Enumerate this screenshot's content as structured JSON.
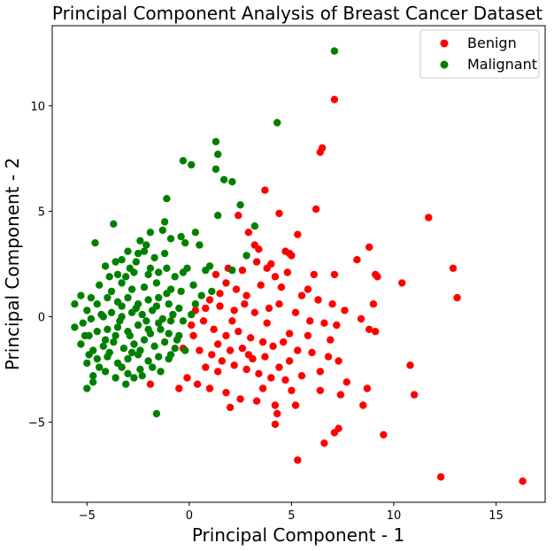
{
  "chart_data": {
    "type": "scatter",
    "title": "Principal Component Analysis of Breast Cancer Dataset",
    "xlabel": "Principal Component - 1",
    "ylabel": "Principal Component - 2",
    "xlim": [
      -6.7,
      17.4
    ],
    "ylim": [
      -8.8,
      13.8
    ],
    "xticks": [
      -5,
      0,
      5,
      10,
      15
    ],
    "yticks": [
      -5,
      0,
      5,
      10
    ],
    "xtick_labels": [
      "−5",
      "0",
      "5",
      "10",
      "15"
    ],
    "ytick_labels": [
      "−5",
      "0",
      "5",
      "10"
    ],
    "grid": false,
    "legend_position": "top-right",
    "series": [
      {
        "name": "Benign",
        "color": "#ff0000",
        "points": [
          [
            7.1,
            10.3
          ],
          [
            6.5,
            8.0
          ],
          [
            6.4,
            7.8
          ],
          [
            3.7,
            6.0
          ],
          [
            6.2,
            5.1
          ],
          [
            11.7,
            4.7
          ],
          [
            2.4,
            4.8
          ],
          [
            4.4,
            4.9
          ],
          [
            12.9,
            2.3
          ],
          [
            13.1,
            0.9
          ],
          [
            10.4,
            1.6
          ],
          [
            9.1,
            2.0
          ],
          [
            9.2,
            1.9
          ],
          [
            8.2,
            2.7
          ],
          [
            8.8,
            3.3
          ],
          [
            5.3,
            3.9
          ],
          [
            2.9,
            4.0
          ],
          [
            3.2,
            3.4
          ],
          [
            4.7,
            3.1
          ],
          [
            4.9,
            3.0
          ],
          [
            5.0,
            2.9
          ],
          [
            6.1,
            2.0
          ],
          [
            7.1,
            2.0
          ],
          [
            9.0,
            0.6
          ],
          [
            5.8,
            1.3
          ],
          [
            4.5,
            1.4
          ],
          [
            3.8,
            2.3
          ],
          [
            3.3,
            2.6
          ],
          [
            2.6,
            2.2
          ],
          [
            1.9,
            2.3
          ],
          [
            1.3,
            2.0
          ],
          [
            1.8,
            1.6
          ],
          [
            2.3,
            1.3
          ],
          [
            2.8,
            1.0
          ],
          [
            3.5,
            1.5
          ],
          [
            4.2,
            1.9
          ],
          [
            4.8,
            2.1
          ],
          [
            5.5,
            1.0
          ],
          [
            6.3,
            0.8
          ],
          [
            7.0,
            0.6
          ],
          [
            7.6,
            0.3
          ],
          [
            8.4,
            -0.1
          ],
          [
            8.8,
            -0.6
          ],
          [
            9.1,
            -0.7
          ],
          [
            1.0,
            0.8
          ],
          [
            1.5,
            0.5
          ],
          [
            2.2,
            0.3
          ],
          [
            2.7,
            0.6
          ],
          [
            3.2,
            0.2
          ],
          [
            3.9,
            0.4
          ],
          [
            4.4,
            0.6
          ],
          [
            5.2,
            0.2
          ],
          [
            5.9,
            -0.2
          ],
          [
            6.6,
            -0.3
          ],
          [
            7.2,
            -0.4
          ],
          [
            0.7,
            -0.2
          ],
          [
            1.2,
            -0.6
          ],
          [
            1.8,
            -0.9
          ],
          [
            2.4,
            -0.7
          ],
          [
            3.0,
            -1.0
          ],
          [
            3.6,
            -1.2
          ],
          [
            4.1,
            -1.4
          ],
          [
            4.6,
            -1.2
          ],
          [
            5.3,
            -1.6
          ],
          [
            6.0,
            -1.7
          ],
          [
            6.8,
            -1.9
          ],
          [
            7.3,
            -2.1
          ],
          [
            0.5,
            -1.6
          ],
          [
            1.1,
            -1.8
          ],
          [
            1.6,
            -2.1
          ],
          [
            2.2,
            -2.3
          ],
          [
            2.8,
            -2.5
          ],
          [
            3.4,
            -2.7
          ],
          [
            4.0,
            -2.9
          ],
          [
            4.7,
            -3.0
          ],
          [
            5.5,
            -2.8
          ],
          [
            6.4,
            -2.6
          ],
          [
            -0.1,
            -2.9
          ],
          [
            0.4,
            -3.2
          ],
          [
            1.0,
            -3.4
          ],
          [
            1.8,
            -3.6
          ],
          [
            2.5,
            -3.9
          ],
          [
            3.3,
            -4.0
          ],
          [
            4.2,
            -4.2
          ],
          [
            5.2,
            -4.2
          ],
          [
            6.4,
            -3.5
          ],
          [
            7.4,
            -3.7
          ],
          [
            7.7,
            -3.1
          ],
          [
            8.7,
            -3.4
          ],
          [
            8.5,
            -4.2
          ],
          [
            -1.9,
            -3.2
          ],
          [
            -0.5,
            -3.4
          ],
          [
            0.8,
            -2.4
          ],
          [
            3.6,
            -3.4
          ],
          [
            4.3,
            -4.6
          ],
          [
            4.2,
            -5.1
          ],
          [
            7.3,
            -5.3
          ],
          [
            7.1,
            -5.5
          ],
          [
            6.6,
            -6.0
          ],
          [
            5.3,
            -6.8
          ],
          [
            9.5,
            -5.6
          ],
          [
            10.8,
            -2.3
          ],
          [
            11.0,
            -3.7
          ],
          [
            12.3,
            -7.6
          ],
          [
            16.3,
            -7.8
          ],
          [
            2.0,
            -4.3
          ],
          [
            3.1,
            -2.0
          ],
          [
            4.9,
            -2.1
          ],
          [
            5.8,
            -0.9
          ],
          [
            2.6,
            -1.5
          ],
          [
            1.4,
            -1.3
          ],
          [
            0.2,
            -0.9
          ],
          [
            -0.3,
            -1.5
          ],
          [
            0.3,
            0.3
          ],
          [
            3.8,
            -0.3
          ],
          [
            4.9,
            -0.8
          ],
          [
            6.9,
            -1.1
          ],
          [
            3.4,
            3.2
          ],
          [
            4.0,
            2.5
          ],
          [
            2.1,
            -0.2
          ],
          [
            2.9,
            -1.8
          ],
          [
            4.4,
            -2.4
          ],
          [
            5.0,
            -3.5
          ],
          [
            1.4,
            -2.6
          ],
          [
            2.0,
            -1.6
          ],
          [
            3.7,
            -1.9
          ],
          [
            1.5,
            1.1
          ],
          [
            0.8,
            0.4
          ],
          [
            0.1,
            -0.4
          ]
        ]
      },
      {
        "name": "Malignant",
        "color": "#008000",
        "points": [
          [
            7.1,
            12.6
          ],
          [
            4.3,
            9.2
          ],
          [
            1.3,
            8.3
          ],
          [
            1.4,
            7.7
          ],
          [
            1.3,
            7.0
          ],
          [
            -0.3,
            7.4
          ],
          [
            0.1,
            7.2
          ],
          [
            1.7,
            6.5
          ],
          [
            2.1,
            6.4
          ],
          [
            -1.1,
            5.6
          ],
          [
            2.5,
            5.3
          ],
          [
            1.4,
            4.8
          ],
          [
            -1.2,
            4.5
          ],
          [
            -3.7,
            4.4
          ],
          [
            -1.3,
            4.1
          ],
          [
            -2.4,
            3.6
          ],
          [
            -4.6,
            3.5
          ],
          [
            -2.1,
            3.4
          ],
          [
            -0.9,
            3.7
          ],
          [
            -0.4,
            3.8
          ],
          [
            0.5,
            3.4
          ],
          [
            0.3,
            4.0
          ],
          [
            -1.9,
            4.0
          ],
          [
            -3.0,
            3.1
          ],
          [
            -2.5,
            3.0
          ],
          [
            -3.3,
            2.7
          ],
          [
            -3.6,
            2.6
          ],
          [
            -4.1,
            2.4
          ],
          [
            -2.7,
            2.1
          ],
          [
            -1.9,
            2.3
          ],
          [
            -1.1,
            2.3
          ],
          [
            -0.3,
            2.1
          ],
          [
            1.0,
            2.4
          ],
          [
            2.1,
            2.2
          ],
          [
            2.8,
            2.9
          ],
          [
            3.2,
            4.3
          ],
          [
            -5.3,
            1.0
          ],
          [
            -4.8,
            0.9
          ],
          [
            -4.4,
            1.5
          ],
          [
            -3.9,
            1.9
          ],
          [
            -3.3,
            1.6
          ],
          [
            -2.8,
            1.3
          ],
          [
            -2.2,
            1.4
          ],
          [
            -1.6,
            1.6
          ],
          [
            -0.9,
            1.3
          ],
          [
            -0.4,
            1.2
          ],
          [
            0.2,
            1.5
          ],
          [
            1.1,
            1.2
          ],
          [
            -5.6,
            0.6
          ],
          [
            -5.0,
            0.3
          ],
          [
            -4.5,
            0.6
          ],
          [
            -4.0,
            0.9
          ],
          [
            -3.5,
            0.7
          ],
          [
            -3.0,
            0.9
          ],
          [
            -2.5,
            0.6
          ],
          [
            -2.0,
            0.8
          ],
          [
            -1.5,
            0.9
          ],
          [
            -1.0,
            0.6
          ],
          [
            -0.5,
            0.4
          ],
          [
            0.3,
            0.6
          ],
          [
            -5.6,
            -0.5
          ],
          [
            -5.2,
            -0.3
          ],
          [
            -4.8,
            -0.1
          ],
          [
            -4.3,
            0.1
          ],
          [
            -3.8,
            0.2
          ],
          [
            -3.3,
            0.0
          ],
          [
            -2.8,
            0.2
          ],
          [
            -2.3,
            0.1
          ],
          [
            -1.8,
            0.3
          ],
          [
            -1.3,
            -0.1
          ],
          [
            -0.8,
            0.1
          ],
          [
            -0.3,
            -0.2
          ],
          [
            -4.9,
            -0.9
          ],
          [
            -4.5,
            -0.7
          ],
          [
            -4.0,
            -0.6
          ],
          [
            -3.5,
            -0.5
          ],
          [
            -3.0,
            -0.7
          ],
          [
            -2.5,
            -0.4
          ],
          [
            -2.0,
            -0.6
          ],
          [
            -1.5,
            -0.3
          ],
          [
            -1.0,
            -0.8
          ],
          [
            -0.5,
            -0.9
          ],
          [
            -4.7,
            -1.6
          ],
          [
            -4.2,
            -1.4
          ],
          [
            -3.7,
            -1.2
          ],
          [
            -3.2,
            -1.5
          ],
          [
            -2.7,
            -1.3
          ],
          [
            -2.2,
            -1.1
          ],
          [
            -1.7,
            -1.4
          ],
          [
            -1.2,
            -1.2
          ],
          [
            -0.7,
            -1.5
          ],
          [
            -0.2,
            -1.6
          ],
          [
            -5.0,
            -2.2
          ],
          [
            -4.5,
            -2.0
          ],
          [
            -4.0,
            -1.9
          ],
          [
            -3.5,
            -2.2
          ],
          [
            -3.0,
            -2.0
          ],
          [
            -2.5,
            -1.8
          ],
          [
            -2.0,
            -2.1
          ],
          [
            -1.5,
            -1.9
          ],
          [
            -1.0,
            -2.0
          ],
          [
            -4.7,
            -2.8
          ],
          [
            -4.1,
            -2.6
          ],
          [
            -3.6,
            -2.9
          ],
          [
            -3.0,
            -2.7
          ],
          [
            -2.4,
            -2.5
          ],
          [
            -1.8,
            -2.4
          ],
          [
            -5.0,
            -3.4
          ],
          [
            -4.7,
            -3.1
          ],
          [
            -3.1,
            -3.2
          ],
          [
            -2.7,
            -2.9
          ],
          [
            -1.6,
            -4.6
          ],
          [
            -0.9,
            -1.8
          ],
          [
            -1.4,
            -2.6
          ],
          [
            -3.9,
            -1.7
          ],
          [
            -3.4,
            -0.2
          ],
          [
            -2.9,
            -0.9
          ],
          [
            -2.4,
            -1.6
          ],
          [
            -1.9,
            -0.8
          ],
          [
            -1.4,
            -0.6
          ],
          [
            -0.9,
            -0.2
          ],
          [
            -3.8,
            1.2
          ],
          [
            -3.1,
            1.9
          ],
          [
            -2.6,
            2.6
          ],
          [
            -2.0,
            2.0
          ],
          [
            -1.5,
            2.1
          ],
          [
            -0.7,
            1.9
          ],
          [
            -0.1,
            2.3
          ],
          [
            0.6,
            1.0
          ],
          [
            -2.3,
            -2.8
          ],
          [
            -3.3,
            -2.4
          ],
          [
            -4.4,
            -2.4
          ],
          [
            -5.3,
            -1.3
          ],
          [
            -4.9,
            -1.8
          ],
          [
            -2.6,
            0.4
          ],
          [
            -2.1,
            -0.2
          ],
          [
            -1.6,
            0.5
          ],
          [
            -1.1,
            1.1
          ],
          [
            -3.6,
            -0.9
          ],
          [
            -4.1,
            -1.1
          ],
          [
            -2.8,
            -1.7
          ],
          [
            -3.3,
            0.5
          ],
          [
            -0.6,
            -1.1
          ],
          [
            0.1,
            0.1
          ],
          [
            -2.2,
            3.1
          ],
          [
            -1.7,
            2.8
          ],
          [
            -2.9,
            2.3
          ],
          [
            -3.5,
            2.0
          ],
          [
            -4.2,
            0.0
          ],
          [
            -5.1,
            -0.9
          ],
          [
            -1.2,
            3.0
          ],
          [
            0.8,
            2.2
          ],
          [
            -0.2,
            3.5
          ]
        ]
      }
    ]
  }
}
